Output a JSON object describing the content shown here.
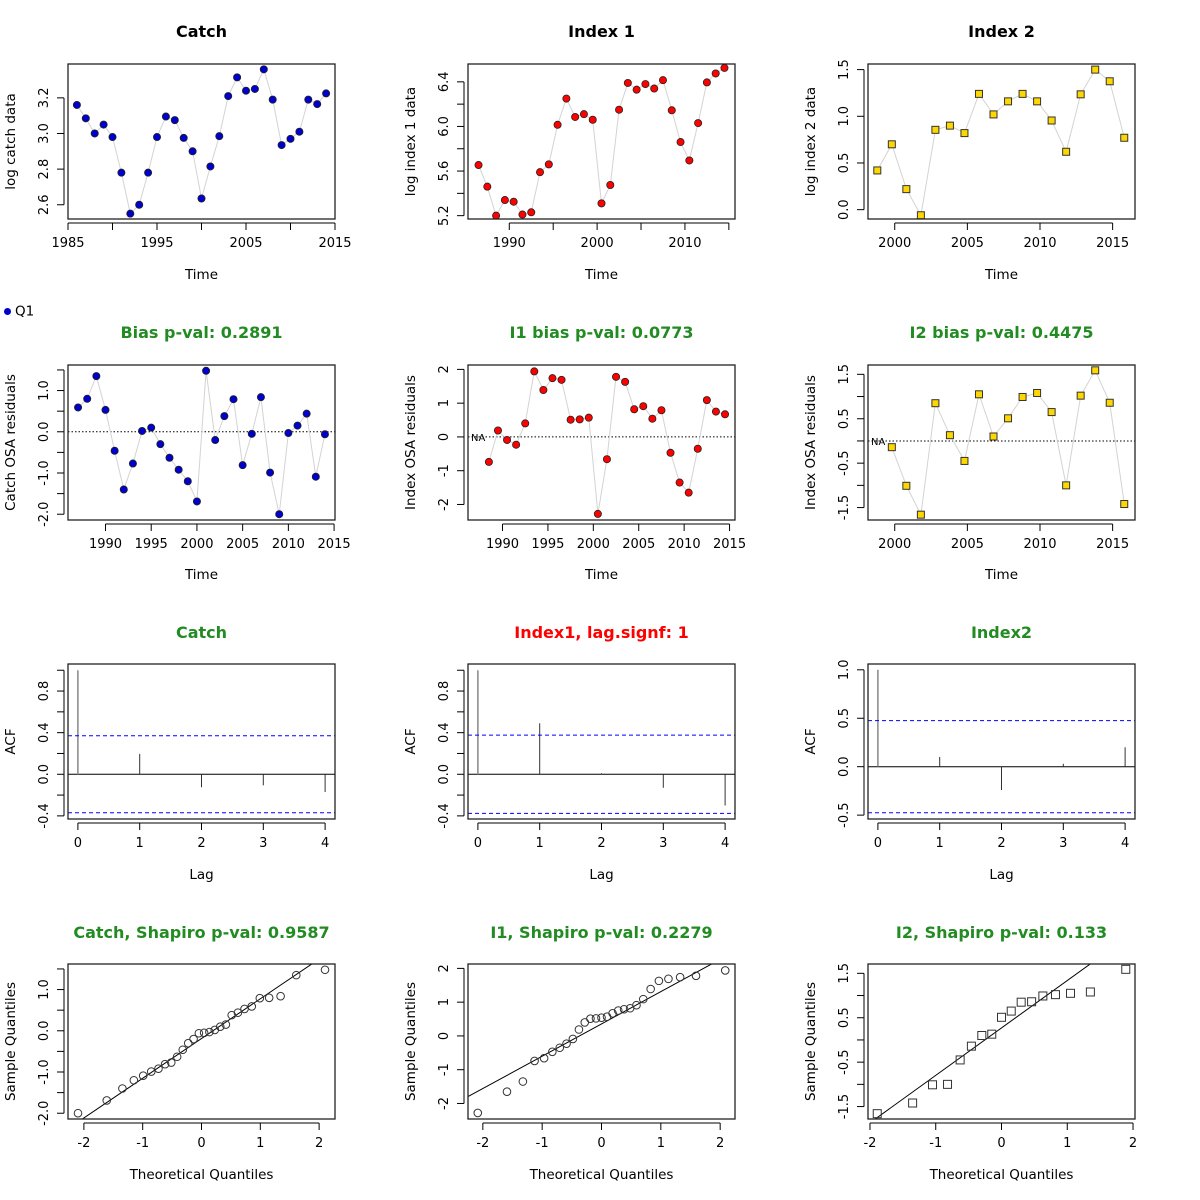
{
  "legend": {
    "symbol_color": "#0000CD",
    "label": "Q1"
  },
  "colors": {
    "catch": "#0000CD",
    "index1": "#FF0000",
    "index2": "#FFD700",
    "pass": "#228B22",
    "fail": "#FF0000",
    "ci": "#0000FF",
    "connector": "#D3D3D3"
  },
  "chart_data": [
    {
      "id": "catch-data",
      "type": "scatter",
      "title": "Catch",
      "title_color": "#000000",
      "xlabel": "Time",
      "ylabel": "log catch data",
      "marker": "circle",
      "fill": "#0000CD",
      "xlim": [
        1985,
        2015
      ],
      "ylim": [
        2.52,
        3.39
      ],
      "xticks": [
        1985,
        1995,
        2005,
        2015
      ],
      "xticks_minor": [
        1990,
        2000,
        2010
      ],
      "yticks": [
        2.6,
        2.8,
        3.0,
        3.2
      ],
      "ytick_labels": [
        "2.6",
        "2.8",
        "3.0",
        "3.2"
      ],
      "x": [
        1986,
        1987,
        1988,
        1989,
        1990,
        1991,
        1992,
        1993,
        1994,
        1995,
        1996,
        1997,
        1998,
        1999,
        2000,
        2001,
        2002,
        2003,
        2004,
        2005,
        2006,
        2007,
        2008,
        2009,
        2010,
        2011,
        2012,
        2013,
        2014
      ],
      "y": [
        3.16,
        3.085,
        3.0,
        3.05,
        2.98,
        2.78,
        2.55,
        2.6,
        2.78,
        2.98,
        3.095,
        3.075,
        2.975,
        2.9,
        2.635,
        2.815,
        2.985,
        3.21,
        3.315,
        3.24,
        3.25,
        3.36,
        3.19,
        2.935,
        2.97,
        3.01,
        3.19,
        3.165,
        3.225
      ]
    },
    {
      "id": "index1-data",
      "type": "scatter",
      "title": "Index 1",
      "title_color": "#000000",
      "xlabel": "Time",
      "ylabel": "log index 1 data",
      "marker": "circle",
      "fill": "#FF0000",
      "xlim": [
        1985.3,
        2015.7
      ],
      "ylim": [
        5.17,
        6.56
      ],
      "xticks": [
        1990,
        2000,
        2010
      ],
      "xticks_minor": [
        1995,
        2005,
        2015
      ],
      "yticks": [
        5.2,
        5.6,
        6.0,
        6.4
      ],
      "yticks_minor": [
        5.4,
        5.8,
        6.2
      ],
      "ytick_labels": [
        "5.2",
        "5.6",
        "6.0",
        "6.4"
      ],
      "x": [
        1986.5,
        1987.5,
        1988.5,
        1989.5,
        1990.5,
        1991.5,
        1992.5,
        1993.5,
        1994.5,
        1995.5,
        1996.5,
        1997.5,
        1998.5,
        1999.5,
        2000.5,
        2001.5,
        2002.5,
        2003.5,
        2004.5,
        2005.5,
        2006.5,
        2007.5,
        2008.5,
        2009.5,
        2010.5,
        2011.5,
        2012.5,
        2013.5,
        2014.5
      ],
      "y": [
        5.654,
        5.46,
        5.2,
        5.34,
        5.325,
        5.21,
        5.23,
        5.59,
        5.66,
        6.015,
        6.25,
        6.085,
        6.11,
        6.06,
        5.31,
        5.475,
        6.15,
        6.39,
        6.33,
        6.38,
        6.34,
        6.415,
        6.145,
        5.86,
        5.695,
        6.03,
        6.395,
        6.475,
        6.525
      ]
    },
    {
      "id": "index2-data",
      "type": "scatter",
      "title": "Index 2",
      "title_color": "#000000",
      "xlabel": "Time",
      "ylabel": "log index 2 data",
      "marker": "square",
      "fill": "#FFD700",
      "xlim": [
        1998.16,
        2016.54
      ],
      "ylim": [
        -0.1,
        1.56
      ],
      "xticks": [
        2000,
        2005,
        2010,
        2015
      ],
      "yticks": [
        0.0,
        0.5,
        1.0,
        1.5
      ],
      "ytick_labels": [
        "0.0",
        "0.5",
        "1.0",
        "1.5"
      ],
      "x": [
        1998.8,
        1999.8,
        2000.8,
        2001.8,
        2002.8,
        2003.8,
        2004.8,
        2005.8,
        2006.8,
        2007.8,
        2008.8,
        2009.8,
        2010.8,
        2011.8,
        2012.8,
        2013.8,
        2014.8,
        2015.8
      ],
      "y": [
        0.42,
        0.7,
        0.22,
        -0.06,
        0.855,
        0.9,
        0.82,
        1.24,
        1.02,
        1.16,
        1.24,
        1.16,
        0.955,
        0.62,
        1.235,
        1.5,
        1.375,
        0.77
      ]
    },
    {
      "id": "catch-resid",
      "type": "scatter",
      "title": "Bias p-val: 0.2891",
      "title_color": "#228B22",
      "xlabel": "Time",
      "ylabel": "Catch OSA residuals",
      "marker": "circle",
      "fill": "#0000CD",
      "zero_line": true,
      "xlim": [
        1985.9,
        2015.1
      ],
      "ylim": [
        -2.14,
        1.62
      ],
      "xticks": [
        1990,
        1995,
        2000,
        2005,
        2010,
        2015
      ],
      "yticks": [
        -2.0,
        -1.0,
        0.0,
        1.0
      ],
      "yticks_minor": [
        -1.5,
        -0.5,
        0.5,
        1.5
      ],
      "ytick_labels": [
        "-2.0",
        "-1.0",
        "0.0",
        "1.0"
      ],
      "x": [
        1987,
        1988,
        1989,
        1990,
        1991,
        1992,
        1993,
        1994,
        1995,
        1996,
        1997,
        1998,
        1999,
        2000,
        2001,
        2002,
        2003,
        2004,
        2005,
        2006,
        2007,
        2008,
        2009,
        2010,
        2011,
        2012,
        2013,
        2014
      ],
      "y": [
        0.59,
        0.8,
        1.35,
        0.53,
        -0.46,
        -1.4,
        -0.77,
        0.02,
        0.1,
        -0.3,
        -0.63,
        -0.92,
        -1.2,
        -1.69,
        1.48,
        -0.2,
        0.38,
        0.79,
        -0.81,
        -0.05,
        0.84,
        -0.99,
        -2.0,
        -0.03,
        0.15,
        0.44,
        -1.09,
        -0.06
      ]
    },
    {
      "id": "index1-resid",
      "type": "scatter",
      "title": "I1 bias p-val: 0.0773",
      "title_color": "#228B22",
      "xlabel": "Time",
      "ylabel": "Index OSA residuals",
      "marker": "circle",
      "fill": "#FF0000",
      "zero_line": true,
      "na_label": "NA",
      "xlim": [
        1986.2,
        2015.6
      ],
      "ylim": [
        -2.46,
        2.13
      ],
      "xticks": [
        1990,
        1995,
        2000,
        2005,
        2010,
        2015
      ],
      "yticks": [
        -2,
        -1,
        0,
        1,
        2
      ],
      "ytick_labels": [
        "-2",
        "-1",
        "0",
        "1",
        "2"
      ],
      "x": [
        1988.5,
        1989.5,
        1990.5,
        1991.5,
        1992.5,
        1993.5,
        1994.5,
        1995.5,
        1996.5,
        1997.5,
        1998.5,
        1999.5,
        2000.5,
        2001.5,
        2002.5,
        2003.5,
        2004.5,
        2005.5,
        2006.5,
        2007.5,
        2008.5,
        2009.5,
        2010.5,
        2011.5,
        2012.5,
        2013.5,
        2014.5
      ],
      "y": [
        -0.74,
        0.19,
        -0.09,
        -0.23,
        0.4,
        1.94,
        1.39,
        1.74,
        1.69,
        0.51,
        0.52,
        0.57,
        -2.28,
        -0.66,
        1.78,
        1.63,
        0.82,
        0.91,
        0.54,
        0.79,
        -0.47,
        -1.35,
        -1.65,
        -0.35,
        1.09,
        0.75,
        0.67
      ]
    },
    {
      "id": "index2-resid",
      "type": "scatter",
      "title": "I2 bias p-val: 0.4475",
      "title_color": "#228B22",
      "xlabel": "Time",
      "ylabel": "Index OSA residuals",
      "marker": "square",
      "fill": "#FFD700",
      "zero_line": true,
      "na_label": "NA",
      "xlim": [
        1998.16,
        2016.54
      ],
      "ylim": [
        -1.78,
        1.71
      ],
      "xticks": [
        2000,
        2005,
        2010,
        2015
      ],
      "yticks": [
        -1.5,
        -0.5,
        0.5,
        1.5
      ],
      "yticks_minor": [
        -1.0,
        0.0,
        1.0
      ],
      "ytick_labels": [
        "-1.5",
        "-0.5",
        "0.5",
        "1.5"
      ],
      "x": [
        1999.8,
        2000.8,
        2001.8,
        2002.8,
        2003.8,
        2004.8,
        2005.8,
        2006.8,
        2007.8,
        2008.8,
        2009.8,
        2010.8,
        2011.8,
        2012.8,
        2013.8,
        2014.8,
        2015.8
      ],
      "y": [
        -0.14,
        -1.01,
        -1.66,
        0.85,
        0.13,
        -0.45,
        1.05,
        0.1,
        0.51,
        0.99,
        1.08,
        0.65,
        -1.0,
        1.02,
        1.59,
        0.86,
        -1.42
      ]
    },
    {
      "id": "catch-acf",
      "type": "bar",
      "title": "Catch",
      "title_color": "#228B22",
      "xlabel": "Lag",
      "ylabel": "ACF",
      "xlim": [
        -0.16,
        4.16
      ],
      "ylim": [
        -0.43,
        1.06
      ],
      "xticks": [
        0,
        1,
        2,
        3,
        4
      ],
      "yticks": [
        -0.4,
        0.0,
        0.4,
        0.8
      ],
      "yticks_minor": [
        -0.2,
        0.2,
        0.6,
        1.0
      ],
      "ytick_labels": [
        "-0.4",
        "0.0",
        "0.4",
        "0.8"
      ],
      "categories": [
        0,
        1,
        2,
        3,
        4
      ],
      "values": [
        1.0,
        0.196,
        -0.125,
        -0.106,
        -0.17
      ],
      "ci": 0.37
    },
    {
      "id": "index1-acf",
      "type": "bar",
      "title": "Index1, lag.signf: 1",
      "title_color": "#FF0000",
      "xlabel": "Lag",
      "ylabel": "ACF",
      "xlim": [
        -0.16,
        4.16
      ],
      "ylim": [
        -0.43,
        1.06
      ],
      "xticks": [
        0,
        1,
        2,
        3,
        4
      ],
      "yticks": [
        -0.4,
        0.0,
        0.4,
        0.8
      ],
      "yticks_minor": [
        -0.2,
        0.2,
        0.6,
        1.0
      ],
      "ytick_labels": [
        "-0.4",
        "0.0",
        "0.4",
        "0.8"
      ],
      "categories": [
        0,
        1,
        2,
        3,
        4
      ],
      "values": [
        1.0,
        0.49,
        0.01,
        -0.13,
        -0.3
      ],
      "ci": 0.376
    },
    {
      "id": "index2-acf",
      "type": "bar",
      "title": "Index2",
      "title_color": "#228B22",
      "xlabel": "Lag",
      "ylabel": "ACF",
      "xlim": [
        -0.16,
        4.16
      ],
      "ylim": [
        -0.54,
        1.06
      ],
      "xticks": [
        0,
        1,
        2,
        3,
        4
      ],
      "yticks": [
        -0.5,
        0.0,
        0.5,
        1.0
      ],
      "ytick_labels": [
        "-0.5",
        "0.0",
        "0.5",
        "1.0"
      ],
      "categories": [
        0,
        1,
        2,
        3,
        4
      ],
      "values": [
        1.0,
        0.1,
        -0.24,
        0.03,
        0.2
      ],
      "ci": 0.476
    },
    {
      "id": "catch-qq",
      "type": "scatter",
      "title": "Catch, Shapiro p-val: 0.9587",
      "title_color": "#228B22",
      "xlabel": "Theoretical Quantiles",
      "ylabel": "Sample Quantiles",
      "marker": "open-circle",
      "qq_of": "catch-resid",
      "xlim": [
        -2.27,
        2.27
      ],
      "ylim": [
        -2.14,
        1.62
      ],
      "xticks": [
        -2,
        -1,
        0,
        1,
        2
      ],
      "yticks": [
        -2.0,
        -1.0,
        0.0,
        1.0
      ],
      "yticks_minor": [
        -1.5,
        -0.5,
        0.5,
        1.5
      ],
      "ytick_labels": [
        "-2.0",
        "-1.0",
        "0.0",
        "1.0"
      ],
      "xtick_labels": [
        "-2",
        "-1",
        "0",
        "1",
        "2"
      ]
    },
    {
      "id": "index1-qq",
      "type": "scatter",
      "title": "I1, Shapiro p-val: 0.2279",
      "title_color": "#228B22",
      "xlabel": "Theoretical Quantiles",
      "ylabel": "Sample Quantiles",
      "marker": "open-circle",
      "qq_of": "index1-resid",
      "xlim": [
        -2.25,
        2.25
      ],
      "ylim": [
        -2.46,
        2.13
      ],
      "xticks": [
        -2,
        -1,
        0,
        1,
        2
      ],
      "yticks": [
        -2,
        -1,
        0,
        1,
        2
      ],
      "ytick_labels": [
        "-2",
        "-1",
        "0",
        "1",
        "2"
      ],
      "xtick_labels": [
        "-2",
        "-1",
        "0",
        "1",
        "2"
      ]
    },
    {
      "id": "index2-qq",
      "type": "scatter",
      "title": "I2, Shapiro p-val: 0.133",
      "title_color": "#228B22",
      "xlabel": "Theoretical Quantiles",
      "ylabel": "Sample Quantiles",
      "marker": "open-square",
      "qq_of": "index2-resid",
      "xlim": [
        -2.03,
        2.03
      ],
      "ylim": [
        -1.78,
        1.71
      ],
      "xticks": [
        -2,
        -1,
        0,
        1,
        2
      ],
      "yticks": [
        -1.5,
        -0.5,
        0.5,
        1.5
      ],
      "yticks_minor": [
        -1.0,
        0.0,
        1.0
      ],
      "ytick_labels": [
        "-1.5",
        "-0.5",
        "0.5",
        "1.5"
      ],
      "xtick_labels": [
        "-2",
        "-1",
        "0",
        "1",
        "2"
      ]
    }
  ]
}
